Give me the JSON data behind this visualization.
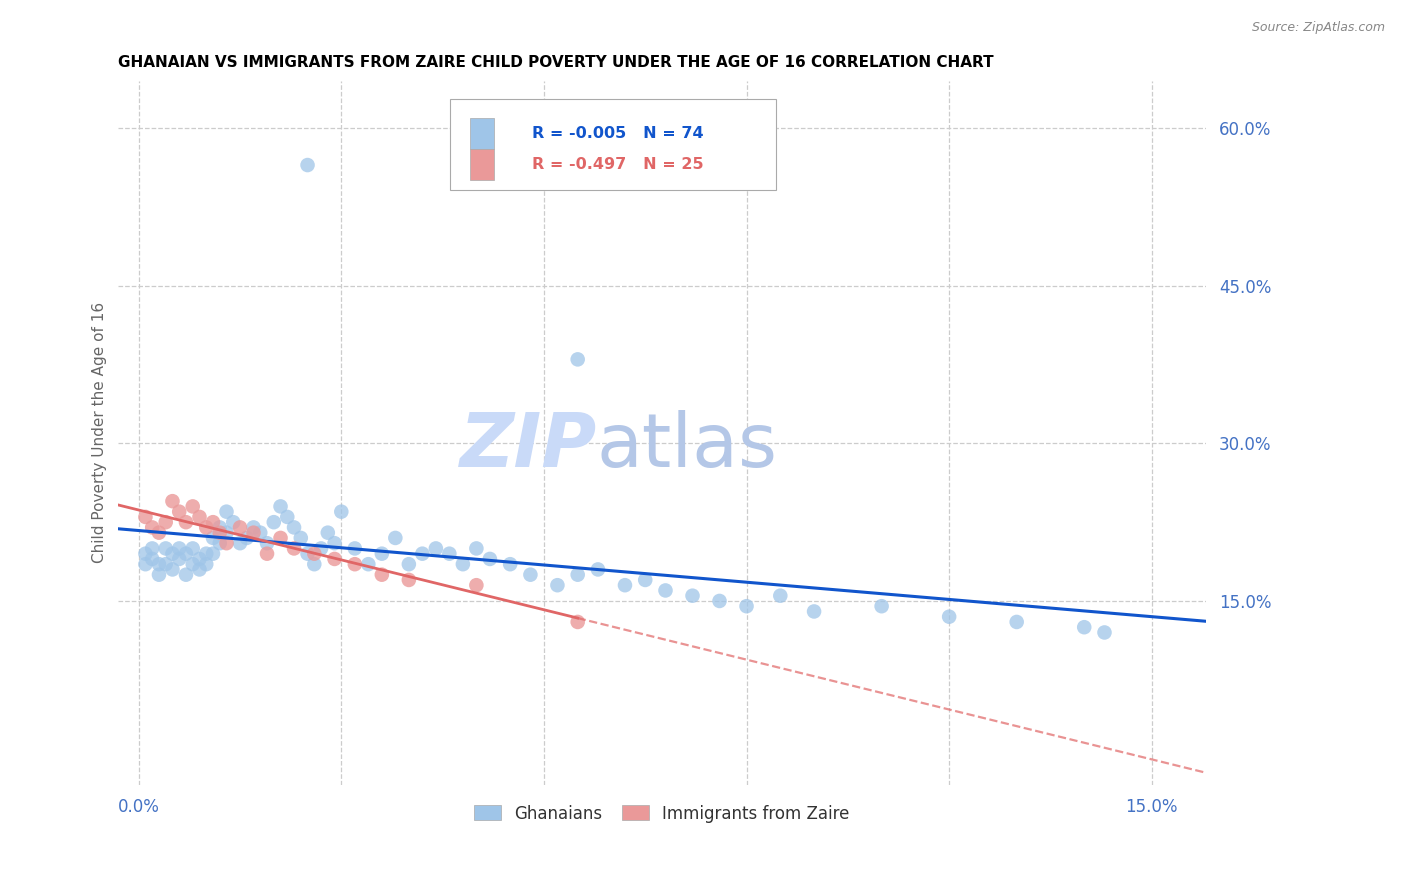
{
  "title": "GHANAIAN VS IMMIGRANTS FROM ZAIRE CHILD POVERTY UNDER THE AGE OF 16 CORRELATION CHART",
  "source": "Source: ZipAtlas.com",
  "ylabel": "Child Poverty Under the Age of 16",
  "right_ytick_vals": [
    0.15,
    0.3,
    0.45,
    0.6
  ],
  "right_ytick_labels": [
    "15.0%",
    "30.0%",
    "45.0%",
    "60.0%"
  ],
  "xtick_vals": [
    0.0,
    0.03,
    0.06,
    0.09,
    0.12,
    0.15
  ],
  "xtick_labels": [
    "0.0%",
    "",
    "",
    "",
    "",
    "15.0%"
  ],
  "xlim": [
    -0.003,
    0.158
  ],
  "ylim": [
    -0.025,
    0.645
  ],
  "ghanaian_R": -0.005,
  "ghanaian_N": 74,
  "zaire_R": -0.497,
  "zaire_N": 25,
  "blue_scatter_color": "#9fc5e8",
  "pink_scatter_color": "#ea9999",
  "blue_line_color": "#1155cc",
  "pink_line_color": "#e06666",
  "axis_color": "#4472c4",
  "title_color": "#000000",
  "watermark_zip_color": "#c9daf8",
  "watermark_atlas_color": "#a4c2f4",
  "legend_label1": "Ghanaians",
  "legend_label2": "Immigrants from Zaire",
  "grid_color": "#cccccc",
  "ghanaians_x": [
    0.001,
    0.001,
    0.002,
    0.002,
    0.003,
    0.003,
    0.004,
    0.004,
    0.005,
    0.005,
    0.006,
    0.006,
    0.007,
    0.007,
    0.008,
    0.008,
    0.009,
    0.009,
    0.01,
    0.01,
    0.011,
    0.011,
    0.012,
    0.012,
    0.013,
    0.013,
    0.014,
    0.015,
    0.016,
    0.017,
    0.018,
    0.019,
    0.02,
    0.021,
    0.022,
    0.023,
    0.024,
    0.025,
    0.026,
    0.027,
    0.028,
    0.029,
    0.03,
    0.032,
    0.034,
    0.036,
    0.038,
    0.04,
    0.042,
    0.044,
    0.046,
    0.048,
    0.05,
    0.052,
    0.055,
    0.058,
    0.062,
    0.065,
    0.068,
    0.072,
    0.075,
    0.078,
    0.082,
    0.086,
    0.09,
    0.095,
    0.1,
    0.11,
    0.12,
    0.13,
    0.14,
    0.143,
    0.065,
    0.025
  ],
  "ghanaians_y": [
    0.195,
    0.185,
    0.2,
    0.19,
    0.185,
    0.175,
    0.2,
    0.185,
    0.195,
    0.18,
    0.2,
    0.19,
    0.175,
    0.195,
    0.185,
    0.2,
    0.18,
    0.19,
    0.195,
    0.185,
    0.21,
    0.195,
    0.22,
    0.205,
    0.235,
    0.215,
    0.225,
    0.205,
    0.21,
    0.22,
    0.215,
    0.205,
    0.225,
    0.24,
    0.23,
    0.22,
    0.21,
    0.195,
    0.185,
    0.2,
    0.215,
    0.205,
    0.235,
    0.2,
    0.185,
    0.195,
    0.21,
    0.185,
    0.195,
    0.2,
    0.195,
    0.185,
    0.2,
    0.19,
    0.185,
    0.175,
    0.165,
    0.175,
    0.18,
    0.165,
    0.17,
    0.16,
    0.155,
    0.15,
    0.145,
    0.155,
    0.14,
    0.145,
    0.135,
    0.13,
    0.125,
    0.12,
    0.38,
    0.565
  ],
  "zaire_x": [
    0.001,
    0.002,
    0.003,
    0.004,
    0.005,
    0.006,
    0.007,
    0.008,
    0.009,
    0.01,
    0.011,
    0.012,
    0.013,
    0.015,
    0.017,
    0.019,
    0.021,
    0.023,
    0.026,
    0.029,
    0.032,
    0.036,
    0.04,
    0.05,
    0.065
  ],
  "zaire_y": [
    0.23,
    0.22,
    0.215,
    0.225,
    0.245,
    0.235,
    0.225,
    0.24,
    0.23,
    0.22,
    0.225,
    0.215,
    0.205,
    0.22,
    0.215,
    0.195,
    0.21,
    0.2,
    0.195,
    0.19,
    0.185,
    0.175,
    0.17,
    0.165,
    0.13
  ],
  "blue_line_y_intercept": 0.198,
  "blue_line_slope": -0.1,
  "pink_line_y_intercept": 0.232,
  "pink_line_slope": -1.55
}
